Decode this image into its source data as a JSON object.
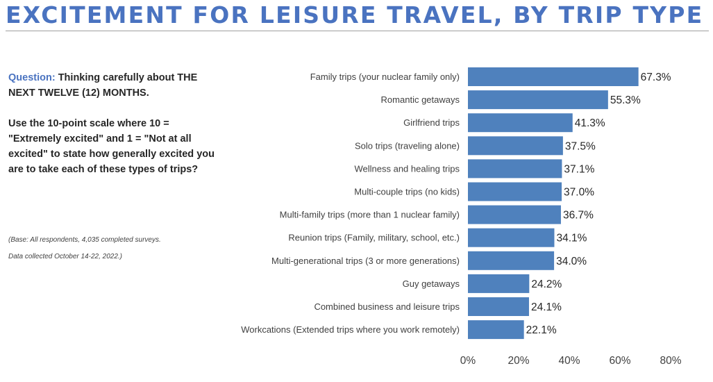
{
  "page": {
    "title": "EXCITEMENT FOR LEISURE TRAVEL, BY TRIP TYPE",
    "question_lead": "Question:",
    "question_text": "Thinking carefully about THE NEXT TWELVE (12) MONTHS.",
    "instruction_text": "Use the 10-point scale where 10 = \"Extremely excited\" and 1 = \"Not at all excited\" to state how generally excited you are to take each of these types of trips?",
    "base_note": "(Base: All respondents, 4,035 completed surveys.",
    "date_note": "Data collected October 14-22, 2022.)"
  },
  "chart_data": {
    "type": "bar",
    "orientation": "horizontal",
    "categories": [
      "Family trips (your nuclear family only)",
      "Romantic getaways",
      "Girlfriend trips",
      "Solo trips (traveling alone)",
      "Wellness and healing trips",
      "Multi-couple trips (no kids)",
      "Multi-family trips (more than 1 nuclear family)",
      "Reunion trips (Family, military, school, etc.)",
      "Multi-generational trips (3 or more generations)",
      "Guy getaways",
      "Combined business and leisure trips",
      "Workcations (Extended trips where you work remotely)"
    ],
    "values": [
      67.3,
      55.3,
      41.3,
      37.5,
      37.1,
      37.0,
      36.7,
      34.1,
      34.0,
      24.2,
      24.1,
      22.1
    ],
    "value_labels": [
      "67.3%",
      "55.3%",
      "41.3%",
      "37.5%",
      "37.1%",
      "37.0%",
      "36.7%",
      "34.1%",
      "34.0%",
      "24.2%",
      "24.1%",
      "22.1%"
    ],
    "xlim": [
      0,
      80
    ],
    "xticks": [
      0,
      20,
      40,
      60,
      80
    ],
    "xtick_labels": [
      "0%",
      "20%",
      "40%",
      "60%",
      "80%"
    ],
    "grid": false,
    "colors": {
      "bar": "#4f81bd",
      "title": "#4a73c0"
    }
  }
}
